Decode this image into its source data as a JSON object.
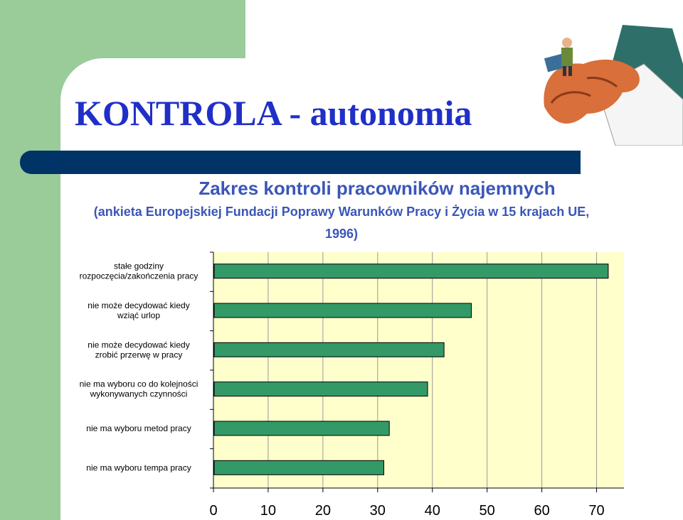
{
  "slide": {
    "title": "KONTROLA - autonomia",
    "chart_title": "Zakres kontroli pracowników najemnych",
    "chart_note_line1": "(ankieta Europejskiej Fundacji Poprawy Warunków Pracy i Życia w 15 krajach UE,",
    "chart_note_line2": "1996)",
    "colors": {
      "title": "#1f2fc8",
      "subtitle": "#3a56b8",
      "accent_green": "#99cc99",
      "strip": "#003366",
      "bar": "#339966",
      "plot_bg": "#ffffcc"
    },
    "clipart_icon": "hand-holding-businessman-icon"
  },
  "chart_data": {
    "type": "bar",
    "orientation": "horizontal",
    "categories": [
      [
        "stałe godziny",
        "rozpoczęcia/zakończenia pracy"
      ],
      [
        "nie może decydować kiedy",
        "wziąć urlop"
      ],
      [
        "nie może decydować kiedy",
        "zrobić przerwę w pracy"
      ],
      [
        "nie ma wyboru co do kolejności",
        "wykonywanych czynności"
      ],
      [
        "nie ma wyboru metod pracy"
      ],
      [
        "nie ma wyboru tempa pracy"
      ]
    ],
    "values": [
      72,
      47,
      42,
      39,
      32,
      31
    ],
    "xlim": [
      0,
      75
    ],
    "xticks": [
      "0",
      "10",
      "20",
      "30",
      "40",
      "50",
      "60",
      "70"
    ],
    "grid": true,
    "legend": "none"
  }
}
